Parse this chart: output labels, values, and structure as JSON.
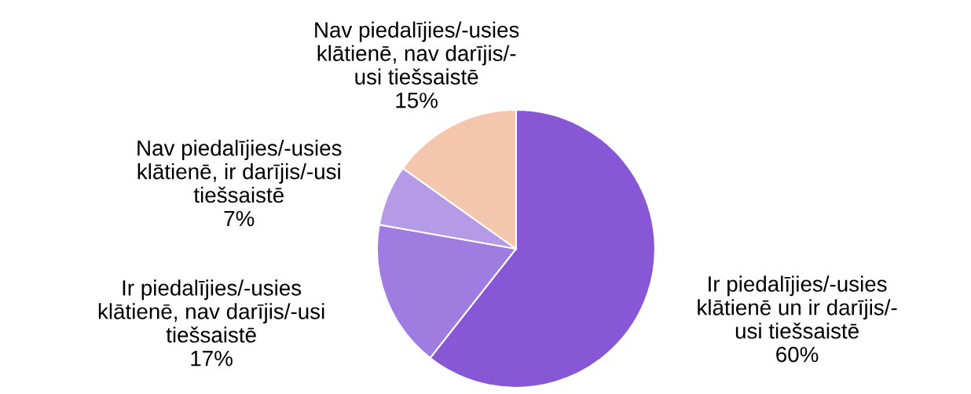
{
  "chart_data": {
    "type": "pie",
    "categories": [
      "Ir piedalījies/-usies\nklātienē un ir darījis/-\nusi tiešsaistē",
      "Ir piedalījies/-usies\nklātienē, nav darījis/-usi\ntiešsaistē",
      "Nav piedalījies/-usies\nklātienē, ir darījis/-usi\ntiešsaistē",
      "Nav piedalījies/-usies\nklātienē, nav darījis/-\nusi tiešsaistē"
    ],
    "values": [
      60,
      17,
      7,
      15
    ],
    "value_labels": [
      "60%",
      "17%",
      "7%",
      "15%"
    ],
    "colors": [
      "#8757d6",
      "#a07ce0",
      "#b59ae6",
      "#f5c6ae"
    ]
  }
}
